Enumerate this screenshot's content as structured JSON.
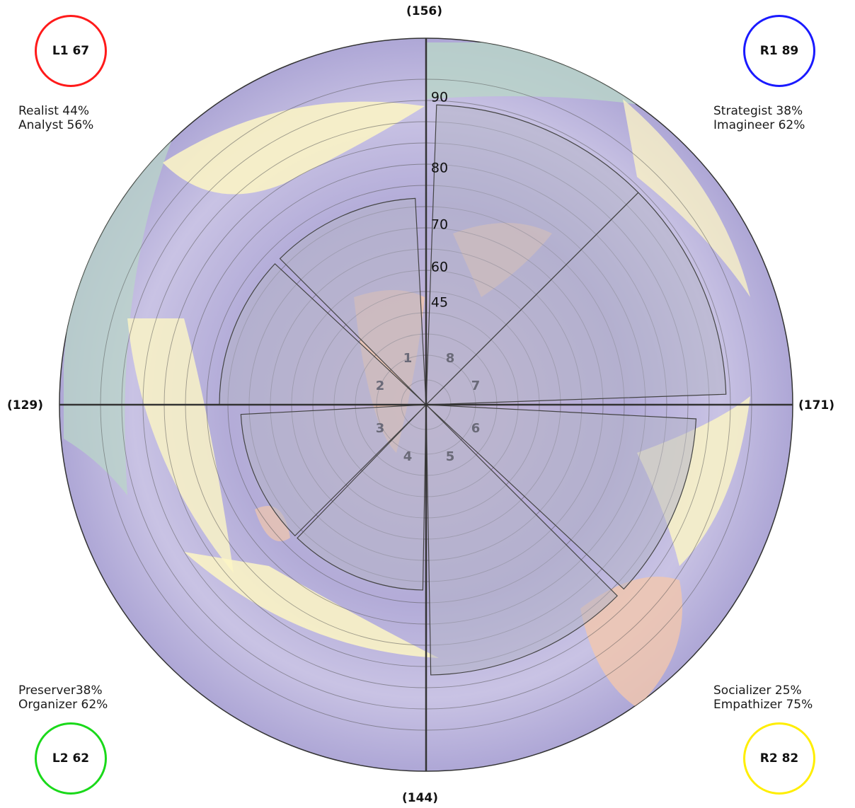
{
  "colors": {
    "L1": "#ff1a1a",
    "R1": "#1a1aff",
    "L2": "#1ad91a",
    "R2": "#ffee00",
    "wedge_fill": "#b4b4c8",
    "background_purple": "#b3acd8",
    "background_yellow": "#fdf6c4",
    "background_green": "#b9d6c8",
    "background_peach": "#f2c7ac"
  },
  "badges": {
    "L1": "L1 67",
    "R1": "R1 89",
    "L2": "L2 62",
    "R2": "R2 82"
  },
  "quadrant_text": {
    "top_left": [
      "Realist 44%",
      "Analyst 56%"
    ],
    "top_right": [
      "Strategist 38%",
      "Imagineer 62%"
    ],
    "bottom_left": [
      "Preserver38%",
      "Organizer 62%"
    ],
    "bottom_right": [
      "Socializer 25%",
      "Empathizer 75%"
    ]
  },
  "axis_labels": {
    "top": "(156)",
    "right": "(171)",
    "bottom": "(144)",
    "left": "(129)"
  },
  "chart_data": {
    "type": "polar-area",
    "radial_ticks": [
      "45",
      "60",
      "70",
      "80",
      "90"
    ],
    "segments": [
      {
        "label": "1",
        "value": 67
      },
      {
        "label": "2",
        "value": 67
      },
      {
        "label": "3",
        "value": 62
      },
      {
        "label": "4",
        "value": 62
      },
      {
        "label": "5",
        "value": 82
      },
      {
        "label": "6",
        "value": 82
      },
      {
        "label": "7",
        "value": 89
      },
      {
        "label": "8",
        "value": 89
      }
    ]
  }
}
